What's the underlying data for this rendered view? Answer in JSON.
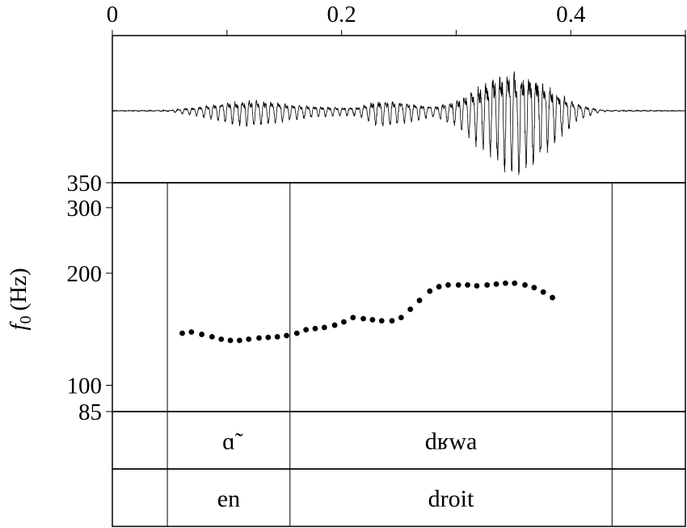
{
  "chart_data": {
    "type": "scatter",
    "time_axis": {
      "range": [
        0,
        0.5
      ],
      "ticks": [
        0,
        0.1,
        0.2,
        0.3,
        0.4,
        0.5
      ],
      "tick_labels": [
        {
          "value": 0,
          "label": "0"
        },
        {
          "value": 0.2,
          "label": "0.2"
        },
        {
          "value": 0.4,
          "label": "0.4"
        }
      ]
    },
    "f0_axis": {
      "label_symbol": "f",
      "label_subscript": "0",
      "label_unit": "(Hz)",
      "scale": "log",
      "range": [
        85,
        350
      ],
      "ticks": [
        {
          "value": 350,
          "label": "350"
        },
        {
          "value": 300,
          "label": "300"
        },
        {
          "value": 200,
          "label": "200"
        },
        {
          "value": 100,
          "label": "100"
        },
        {
          "value": 85,
          "label": "85"
        }
      ]
    },
    "waveform": {
      "envelope": [
        [
          0.0,
          0.0
        ],
        [
          0.05,
          0.01
        ],
        [
          0.06,
          0.05
        ],
        [
          0.075,
          0.09
        ],
        [
          0.1,
          0.2
        ],
        [
          0.12,
          0.26
        ],
        [
          0.14,
          0.22
        ],
        [
          0.16,
          0.14
        ],
        [
          0.18,
          0.1
        ],
        [
          0.2,
          0.08
        ],
        [
          0.215,
          0.09
        ],
        [
          0.225,
          0.2
        ],
        [
          0.235,
          0.27
        ],
        [
          0.26,
          0.18
        ],
        [
          0.28,
          0.1
        ],
        [
          0.3,
          0.25
        ],
        [
          0.32,
          0.6
        ],
        [
          0.335,
          0.85
        ],
        [
          0.35,
          1.0
        ],
        [
          0.36,
          0.97
        ],
        [
          0.375,
          0.75
        ],
        [
          0.39,
          0.45
        ],
        [
          0.405,
          0.18
        ],
        [
          0.42,
          0.06
        ],
        [
          0.43,
          0.01
        ],
        [
          0.5,
          0.0
        ]
      ]
    },
    "f0_points": [
      [
        0.061,
        138
      ],
      [
        0.069,
        139
      ],
      [
        0.078,
        137
      ],
      [
        0.087,
        135
      ],
      [
        0.095,
        133
      ],
      [
        0.103,
        132
      ],
      [
        0.111,
        132
      ],
      [
        0.119,
        133
      ],
      [
        0.128,
        134
      ],
      [
        0.136,
        134.5
      ],
      [
        0.144,
        135
      ],
      [
        0.152,
        136
      ],
      [
        0.161,
        138
      ],
      [
        0.169,
        141
      ],
      [
        0.177,
        142
      ],
      [
        0.185,
        143
      ],
      [
        0.194,
        145
      ],
      [
        0.202,
        148
      ],
      [
        0.21,
        152
      ],
      [
        0.219,
        151
      ],
      [
        0.227,
        150
      ],
      [
        0.235,
        149
      ],
      [
        0.244,
        149
      ],
      [
        0.252,
        152
      ],
      [
        0.26,
        160
      ],
      [
        0.268,
        169
      ],
      [
        0.277,
        179
      ],
      [
        0.285,
        184
      ],
      [
        0.293,
        186
      ],
      [
        0.302,
        186
      ],
      [
        0.31,
        186
      ],
      [
        0.318,
        185
      ],
      [
        0.327,
        186
      ],
      [
        0.335,
        187
      ],
      [
        0.343,
        188
      ],
      [
        0.351,
        188
      ],
      [
        0.36,
        186
      ],
      [
        0.368,
        183
      ],
      [
        0.376,
        178
      ],
      [
        0.384,
        172
      ]
    ],
    "phone_tier": {
      "boundaries": [
        0.048,
        0.155,
        0.436
      ],
      "intervals": [
        {
          "start": 0.048,
          "end": 0.155,
          "label": "ɑ̃"
        },
        {
          "start": 0.155,
          "end": 0.436,
          "label": "dʁwa"
        }
      ]
    },
    "word_tier": {
      "boundaries": [
        0.048,
        0.155,
        0.436
      ],
      "intervals": [
        {
          "start": 0.048,
          "end": 0.155,
          "label": "en"
        },
        {
          "start": 0.155,
          "end": 0.436,
          "label": "droit"
        }
      ]
    }
  }
}
